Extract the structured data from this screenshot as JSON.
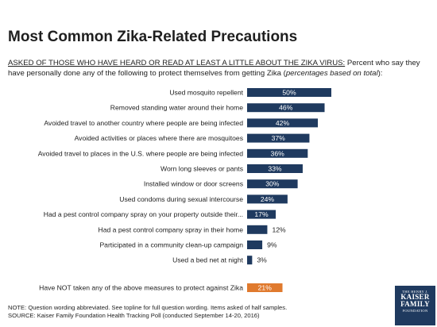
{
  "header": {
    "title": "Most Common Zika-Related Precautions",
    "subtitle_prefix": "ASKED OF THOSE WHO HAVE HEARD OR READ AT LEAST A LITTLE ABOUT THE ZIKA VIRUS:",
    "subtitle_body": " Percent who say they have personally done any of the following to protect themselves from getting Zika (",
    "subtitle_italic": "percentages based on total",
    "subtitle_end": "):"
  },
  "footer": {
    "note": "NOTE: Question wording abbreviated. See topline for full question wording. Items asked of half samples.",
    "source": "SOURCE: Kaiser Family Foundation Health Tracking Poll (conducted September 14-20, 2016)"
  },
  "logo": {
    "top": "THE HENRY J.",
    "line1": "KAISER",
    "line2": "FAMILY",
    "bottom": "FOUNDATION"
  },
  "colors": {
    "bar": "#1f3a5f",
    "highlight": "#e07a2e",
    "label": "#222222"
  },
  "chart_data": {
    "type": "bar",
    "orientation": "horizontal",
    "categories": [
      "Used mosquito repellent",
      "Removed standing water around their home",
      "Avoided travel to another country where people are being infected",
      "Avoided activities or places where there are mosquitoes",
      "Avoided travel to places in the U.S. where people are being infected",
      "Worn long sleeves or pants",
      "Installed window or door screens",
      "Used condoms during sexual intercourse",
      "Had a pest control company spray on your property outside their...",
      "Had a pest control company spray in their home",
      "Participated in a community clean-up campaign",
      "Used a bed net at night",
      "Have NOT taken any of the above measures to protect against Zika"
    ],
    "values": [
      50,
      46,
      42,
      37,
      36,
      33,
      30,
      24,
      17,
      12,
      9,
      3,
      21
    ],
    "value_labels": [
      "50%",
      "46%",
      "42%",
      "37%",
      "36%",
      "33%",
      "30%",
      "24%",
      "17%",
      "12%",
      "9%",
      "3%",
      "21%"
    ],
    "highlight": [
      false,
      false,
      false,
      false,
      false,
      false,
      false,
      false,
      false,
      false,
      false,
      false,
      true
    ],
    "xlim": [
      0,
      100
    ]
  }
}
